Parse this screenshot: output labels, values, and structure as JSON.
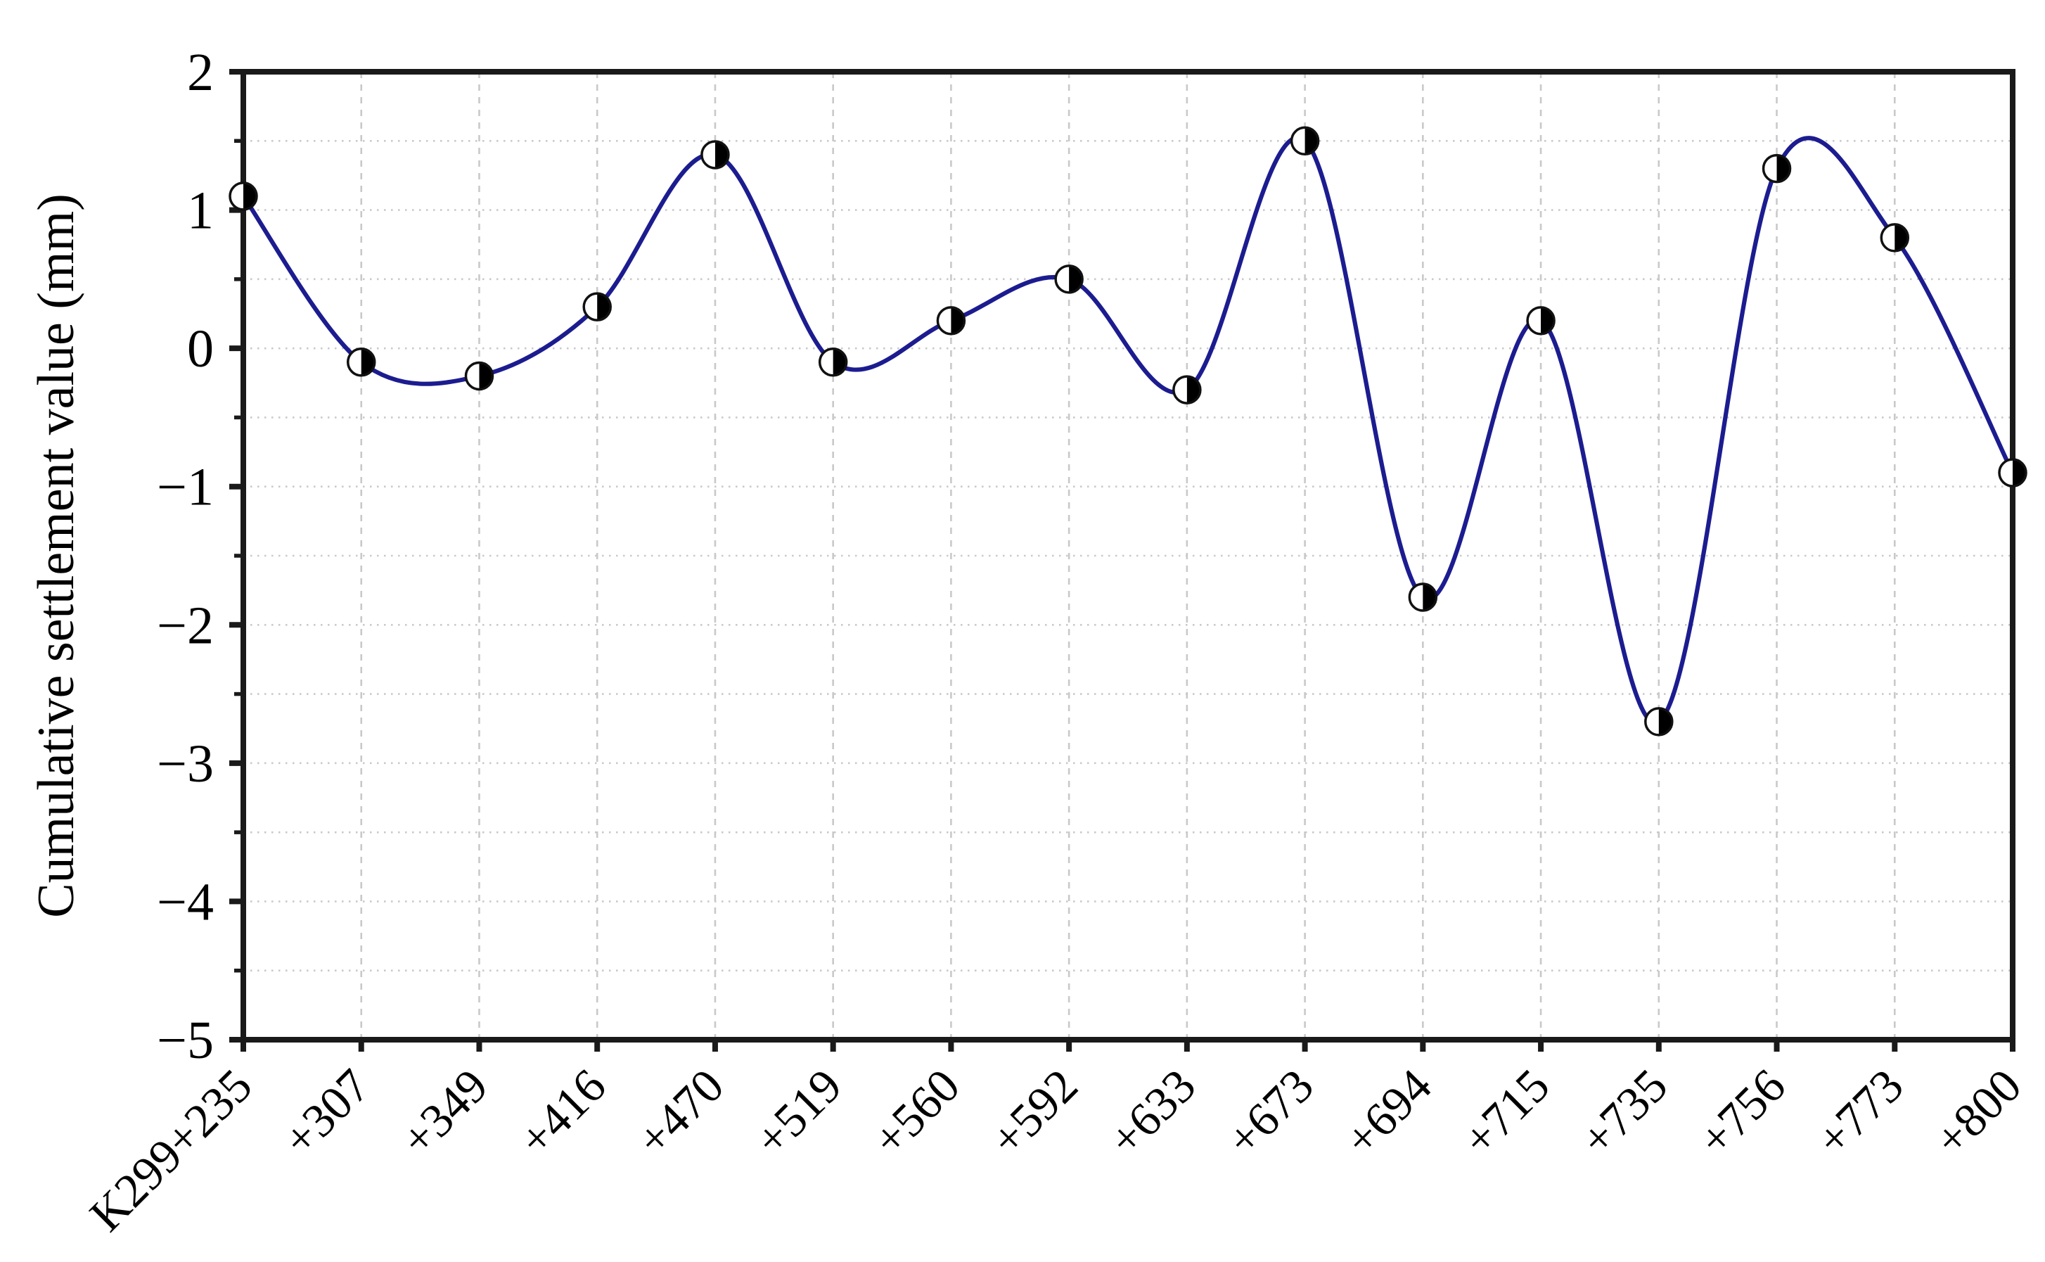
{
  "chart_data": {
    "type": "line",
    "title": "",
    "xlabel": "",
    "ylabel": "Cumulative settlement value (mm)",
    "categories": [
      "K299+235",
      "+307",
      "+349",
      "+416",
      "+470",
      "+519",
      "+560",
      "+592",
      "+633",
      "+673",
      "+694",
      "+715",
      "+735",
      "+756",
      "+773",
      "+800"
    ],
    "series": [
      {
        "name": "Cumulative settlement value",
        "values": [
          1.1,
          -0.1,
          -0.2,
          0.3,
          1.4,
          -0.1,
          0.2,
          0.5,
          -0.3,
          1.5,
          -1.8,
          0.2,
          -2.7,
          1.3,
          0.8,
          -0.9
        ]
      }
    ],
    "ylim": [
      -5,
      2
    ],
    "y_major_ticks": [
      2,
      1,
      0,
      -1,
      -2,
      -3,
      -4,
      -5
    ],
    "y_tick_labels": [
      "2",
      "1",
      "0",
      "−1",
      "−2",
      "−3",
      "−4",
      "−5"
    ],
    "y_minor_step": 0.5,
    "grid": "horizontal dotted every 0.5, vertical dashed at every category",
    "legend": "none",
    "x_tick_label_rotation": -45,
    "line_color": "#1c1c90",
    "marker_style": "circle-right-half-black",
    "marker_fill_left": "#ffffff",
    "marker_fill_right": "#000000",
    "marker_outline": "#111111",
    "axis_color": "#1a1a1a",
    "grid_color": "#c9c9c9",
    "background_color": "#ffffff"
  }
}
